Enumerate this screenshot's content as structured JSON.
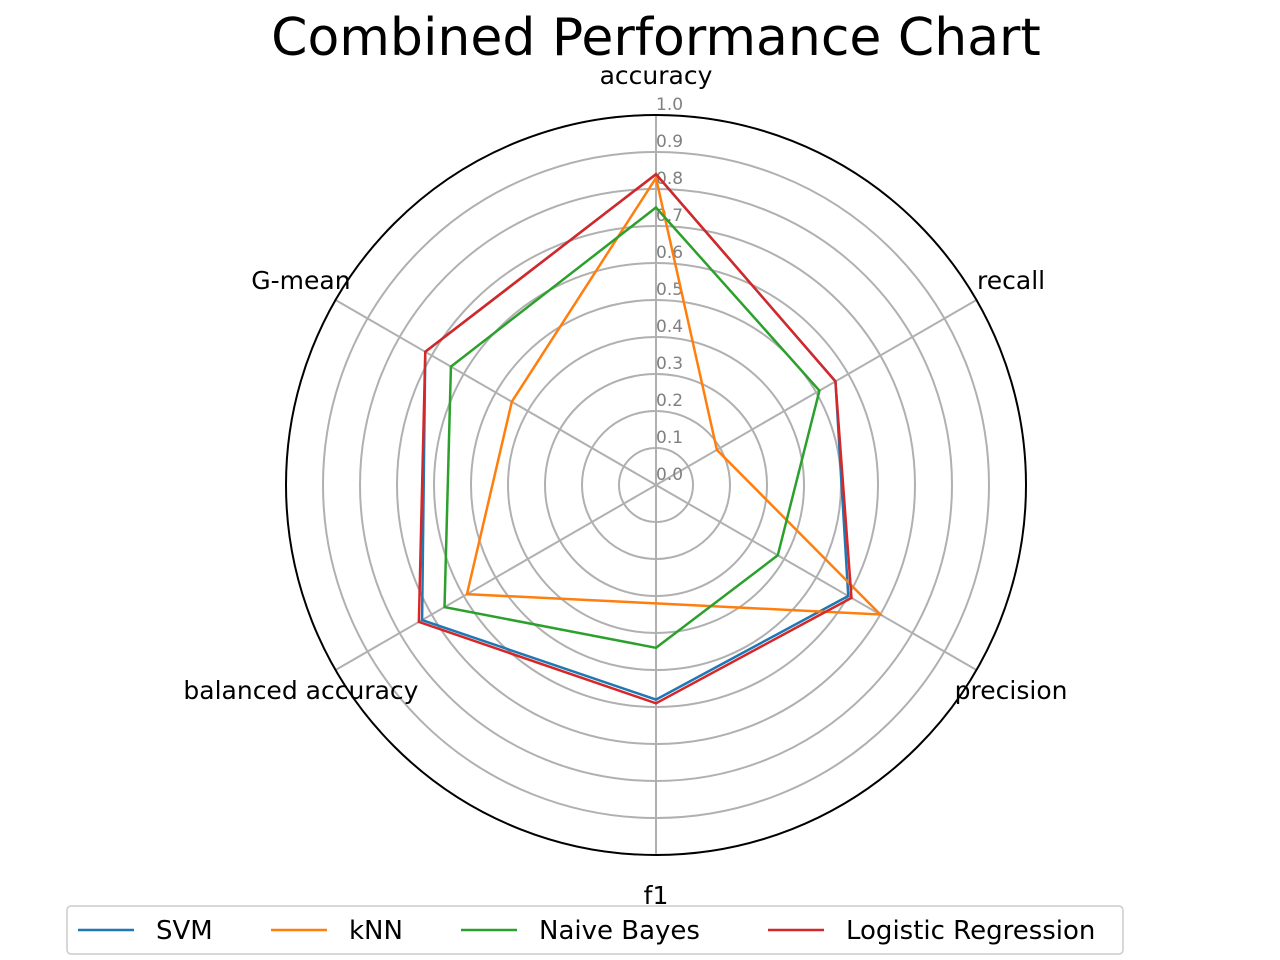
{
  "chart_data": {
    "type": "radar",
    "title": "Combined Performance Chart",
    "axes": [
      "accuracy",
      "recall",
      "precision",
      "f1",
      "balanced accuracy",
      "G-mean"
    ],
    "rlim": [
      0,
      1.0
    ],
    "rticks": [
      "0.0",
      "0.1",
      "0.2",
      "0.3",
      "0.4",
      "0.5",
      "0.6",
      "0.7",
      "0.8",
      "0.9",
      "1.0"
    ],
    "grid": true,
    "legend_position": "bottom",
    "series": [
      {
        "name": "SVM",
        "color": "#1f77b4",
        "values": [
          0.84,
          0.56,
          0.6,
          0.58,
          0.73,
          0.72
        ]
      },
      {
        "name": "kNN",
        "color": "#ff7f0e",
        "values": [
          0.83,
          0.19,
          0.7,
          0.32,
          0.59,
          0.45
        ]
      },
      {
        "name": "Naive Bayes",
        "color": "#2ca02c",
        "values": [
          0.75,
          0.51,
          0.38,
          0.44,
          0.66,
          0.64
        ]
      },
      {
        "name": "Logistic Regression",
        "color": "#d62728",
        "values": [
          0.84,
          0.56,
          0.61,
          0.59,
          0.74,
          0.72
        ]
      }
    ]
  }
}
